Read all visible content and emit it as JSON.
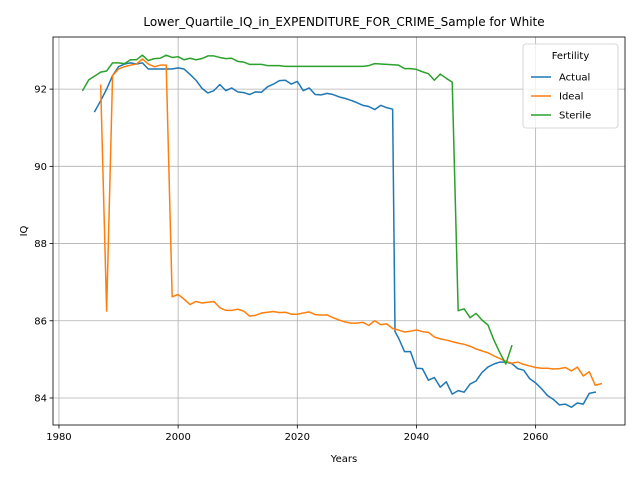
{
  "chart_data": {
    "type": "line",
    "title": "Lower_Quartile_IQ_in_EXPENDITURE_FOR_CRIME_Sample for White",
    "xlabel": "Years",
    "ylabel": "IQ",
    "xlim": [
      1979,
      2075
    ],
    "ylim": [
      83.3,
      93.35
    ],
    "xticks": [
      1980,
      2000,
      2020,
      2040,
      2060
    ],
    "yticks": [
      84,
      86,
      88,
      90,
      92
    ],
    "grid": true,
    "legend": {
      "title": "Fertility",
      "position": "top-right"
    },
    "series": [
      {
        "name": "Actual",
        "color": "#1f77b4",
        "points": [
          [
            1986,
            91.42
          ],
          [
            1987,
            91.7
          ],
          [
            1988,
            92.0
          ],
          [
            1989,
            92.35
          ],
          [
            1990,
            92.58
          ],
          [
            1991,
            92.65
          ],
          [
            1992,
            92.68
          ],
          [
            1993,
            92.65
          ],
          [
            1994,
            92.68
          ],
          [
            1995,
            92.52
          ],
          [
            1996,
            92.52
          ],
          [
            1997,
            92.52
          ],
          [
            1998,
            92.52
          ],
          [
            1999,
            92.52
          ],
          [
            2000,
            92.55
          ],
          [
            2001,
            92.52
          ],
          [
            2002,
            92.38
          ],
          [
            2003,
            92.23
          ],
          [
            2004,
            92.02
          ],
          [
            2005,
            91.9
          ],
          [
            2006,
            91.96
          ],
          [
            2007,
            92.12
          ],
          [
            2008,
            91.96
          ],
          [
            2009,
            92.03
          ],
          [
            2010,
            91.93
          ],
          [
            2011,
            91.91
          ],
          [
            2012,
            91.86
          ],
          [
            2013,
            91.93
          ],
          [
            2014,
            91.92
          ],
          [
            2015,
            92.06
          ],
          [
            2016,
            92.13
          ],
          [
            2017,
            92.22
          ],
          [
            2018,
            92.23
          ],
          [
            2019,
            92.13
          ],
          [
            2020,
            92.2
          ],
          [
            2021,
            91.96
          ],
          [
            2022,
            92.03
          ],
          [
            2023,
            91.86
          ],
          [
            2024,
            91.85
          ],
          [
            2025,
            91.89
          ],
          [
            2026,
            91.86
          ],
          [
            2027,
            91.8
          ],
          [
            2028,
            91.76
          ],
          [
            2029,
            91.71
          ],
          [
            2030,
            91.65
          ],
          [
            2031,
            91.58
          ],
          [
            2032,
            91.55
          ],
          [
            2033,
            91.47
          ],
          [
            2034,
            91.58
          ],
          [
            2035,
            91.52
          ],
          [
            2036,
            91.48
          ],
          [
            2036.4,
            85.72
          ],
          [
            2037,
            85.55
          ],
          [
            2038,
            85.2
          ],
          [
            2039,
            85.2
          ],
          [
            2040,
            84.77
          ],
          [
            2041,
            84.76
          ],
          [
            2042,
            84.46
          ],
          [
            2043,
            84.53
          ],
          [
            2044,
            84.28
          ],
          [
            2045,
            84.42
          ],
          [
            2046,
            84.1
          ],
          [
            2047,
            84.19
          ],
          [
            2048,
            84.15
          ],
          [
            2049,
            84.36
          ],
          [
            2050,
            84.44
          ],
          [
            2051,
            84.66
          ],
          [
            2052,
            84.8
          ],
          [
            2053,
            84.88
          ],
          [
            2054,
            84.93
          ],
          [
            2055,
            84.93
          ],
          [
            2056,
            84.89
          ],
          [
            2057,
            84.76
          ],
          [
            2058,
            84.72
          ],
          [
            2059,
            84.5
          ],
          [
            2060,
            84.39
          ],
          [
            2061,
            84.24
          ],
          [
            2062,
            84.06
          ],
          [
            2063,
            83.96
          ],
          [
            2064,
            83.82
          ],
          [
            2065,
            83.84
          ],
          [
            2066,
            83.76
          ],
          [
            2067,
            83.87
          ],
          [
            2068,
            83.84
          ],
          [
            2069,
            84.12
          ],
          [
            2070,
            84.15
          ]
        ]
      },
      {
        "name": "Ideal",
        "color": "#ff7f0e",
        "points": [
          [
            1987,
            92.1
          ],
          [
            1988,
            86.25
          ],
          [
            1989,
            92.35
          ],
          [
            1990,
            92.52
          ],
          [
            1991,
            92.58
          ],
          [
            1992,
            92.62
          ],
          [
            1993,
            92.65
          ],
          [
            1994,
            92.78
          ],
          [
            1995,
            92.65
          ],
          [
            1996,
            92.58
          ],
          [
            1997,
            92.62
          ],
          [
            1998,
            92.62
          ],
          [
            1999,
            86.62
          ],
          [
            2000,
            86.68
          ],
          [
            2001,
            86.56
          ],
          [
            2002,
            86.42
          ],
          [
            2003,
            86.5
          ],
          [
            2004,
            86.46
          ],
          [
            2005,
            86.48
          ],
          [
            2006,
            86.5
          ],
          [
            2007,
            86.34
          ],
          [
            2008,
            86.27
          ],
          [
            2009,
            86.27
          ],
          [
            2010,
            86.3
          ],
          [
            2011,
            86.25
          ],
          [
            2012,
            86.12
          ],
          [
            2013,
            86.14
          ],
          [
            2014,
            86.2
          ],
          [
            2015,
            86.22
          ],
          [
            2016,
            86.24
          ],
          [
            2017,
            86.21
          ],
          [
            2018,
            86.22
          ],
          [
            2019,
            86.17
          ],
          [
            2020,
            86.17
          ],
          [
            2021,
            86.2
          ],
          [
            2022,
            86.23
          ],
          [
            2023,
            86.16
          ],
          [
            2024,
            86.15
          ],
          [
            2025,
            86.15
          ],
          [
            2026,
            86.08
          ],
          [
            2027,
            86.02
          ],
          [
            2028,
            85.97
          ],
          [
            2029,
            85.94
          ],
          [
            2030,
            85.94
          ],
          [
            2031,
            85.96
          ],
          [
            2032,
            85.88
          ],
          [
            2033,
            86.0
          ],
          [
            2034,
            85.9
          ],
          [
            2035,
            85.92
          ],
          [
            2036,
            85.8
          ],
          [
            2037,
            85.76
          ],
          [
            2038,
            85.71
          ],
          [
            2039,
            85.73
          ],
          [
            2040,
            85.76
          ],
          [
            2041,
            85.72
          ],
          [
            2042,
            85.7
          ],
          [
            2043,
            85.58
          ],
          [
            2044,
            85.53
          ],
          [
            2045,
            85.5
          ],
          [
            2046,
            85.46
          ],
          [
            2047,
            85.42
          ],
          [
            2048,
            85.39
          ],
          [
            2049,
            85.34
          ],
          [
            2050,
            85.27
          ],
          [
            2051,
            85.22
          ],
          [
            2052,
            85.17
          ],
          [
            2053,
            85.09
          ],
          [
            2054,
            85.02
          ],
          [
            2055,
            84.95
          ],
          [
            2056,
            84.9
          ],
          [
            2057,
            84.93
          ],
          [
            2058,
            84.87
          ],
          [
            2059,
            84.83
          ],
          [
            2060,
            84.79
          ],
          [
            2061,
            84.77
          ],
          [
            2062,
            84.77
          ],
          [
            2063,
            84.75
          ],
          [
            2064,
            84.76
          ],
          [
            2065,
            84.79
          ],
          [
            2066,
            84.7
          ],
          [
            2067,
            84.8
          ],
          [
            2068,
            84.57
          ],
          [
            2069,
            84.68
          ],
          [
            2070,
            84.33
          ],
          [
            2071,
            84.37
          ]
        ]
      },
      {
        "name": "Sterile",
        "color": "#2ca02c",
        "points": [
          [
            1984,
            91.97
          ],
          [
            1985,
            92.24
          ],
          [
            1986,
            92.34
          ],
          [
            1987,
            92.44
          ],
          [
            1988,
            92.47
          ],
          [
            1989,
            92.68
          ],
          [
            1990,
            92.68
          ],
          [
            1991,
            92.66
          ],
          [
            1992,
            92.76
          ],
          [
            1993,
            92.76
          ],
          [
            1994,
            92.88
          ],
          [
            1995,
            92.74
          ],
          [
            1996,
            92.79
          ],
          [
            1997,
            92.8
          ],
          [
            1998,
            92.88
          ],
          [
            1999,
            92.82
          ],
          [
            2000,
            92.84
          ],
          [
            2001,
            92.76
          ],
          [
            2002,
            92.8
          ],
          [
            2003,
            92.76
          ],
          [
            2004,
            92.79
          ],
          [
            2005,
            92.86
          ],
          [
            2006,
            92.86
          ],
          [
            2007,
            92.82
          ],
          [
            2008,
            92.79
          ],
          [
            2009,
            92.8
          ],
          [
            2010,
            92.72
          ],
          [
            2011,
            92.7
          ],
          [
            2012,
            92.64
          ],
          [
            2013,
            92.64
          ],
          [
            2014,
            92.64
          ],
          [
            2015,
            92.61
          ],
          [
            2016,
            92.61
          ],
          [
            2017,
            92.61
          ],
          [
            2018,
            92.59
          ],
          [
            2019,
            92.59
          ],
          [
            2020,
            92.59
          ],
          [
            2021,
            92.59
          ],
          [
            2022,
            92.59
          ],
          [
            2023,
            92.59
          ],
          [
            2024,
            92.59
          ],
          [
            2025,
            92.59
          ],
          [
            2026,
            92.59
          ],
          [
            2027,
            92.59
          ],
          [
            2028,
            92.59
          ],
          [
            2029,
            92.59
          ],
          [
            2030,
            92.59
          ],
          [
            2031,
            92.59
          ],
          [
            2032,
            92.61
          ],
          [
            2033,
            92.66
          ],
          [
            2034,
            92.65
          ],
          [
            2035,
            92.64
          ],
          [
            2036,
            92.63
          ],
          [
            2037,
            92.62
          ],
          [
            2038,
            92.53
          ],
          [
            2039,
            92.53
          ],
          [
            2040,
            92.51
          ],
          [
            2041,
            92.45
          ],
          [
            2042,
            92.4
          ],
          [
            2043,
            92.23
          ],
          [
            2044,
            92.39
          ],
          [
            2045,
            92.28
          ],
          [
            2046,
            92.18
          ],
          [
            2047,
            86.26
          ],
          [
            2048,
            86.31
          ],
          [
            2049,
            86.08
          ],
          [
            2050,
            86.19
          ],
          [
            2051,
            86.02
          ],
          [
            2052,
            85.89
          ],
          [
            2053,
            85.5
          ],
          [
            2054,
            85.17
          ],
          [
            2055,
            84.88
          ],
          [
            2056,
            85.35
          ]
        ]
      }
    ]
  }
}
